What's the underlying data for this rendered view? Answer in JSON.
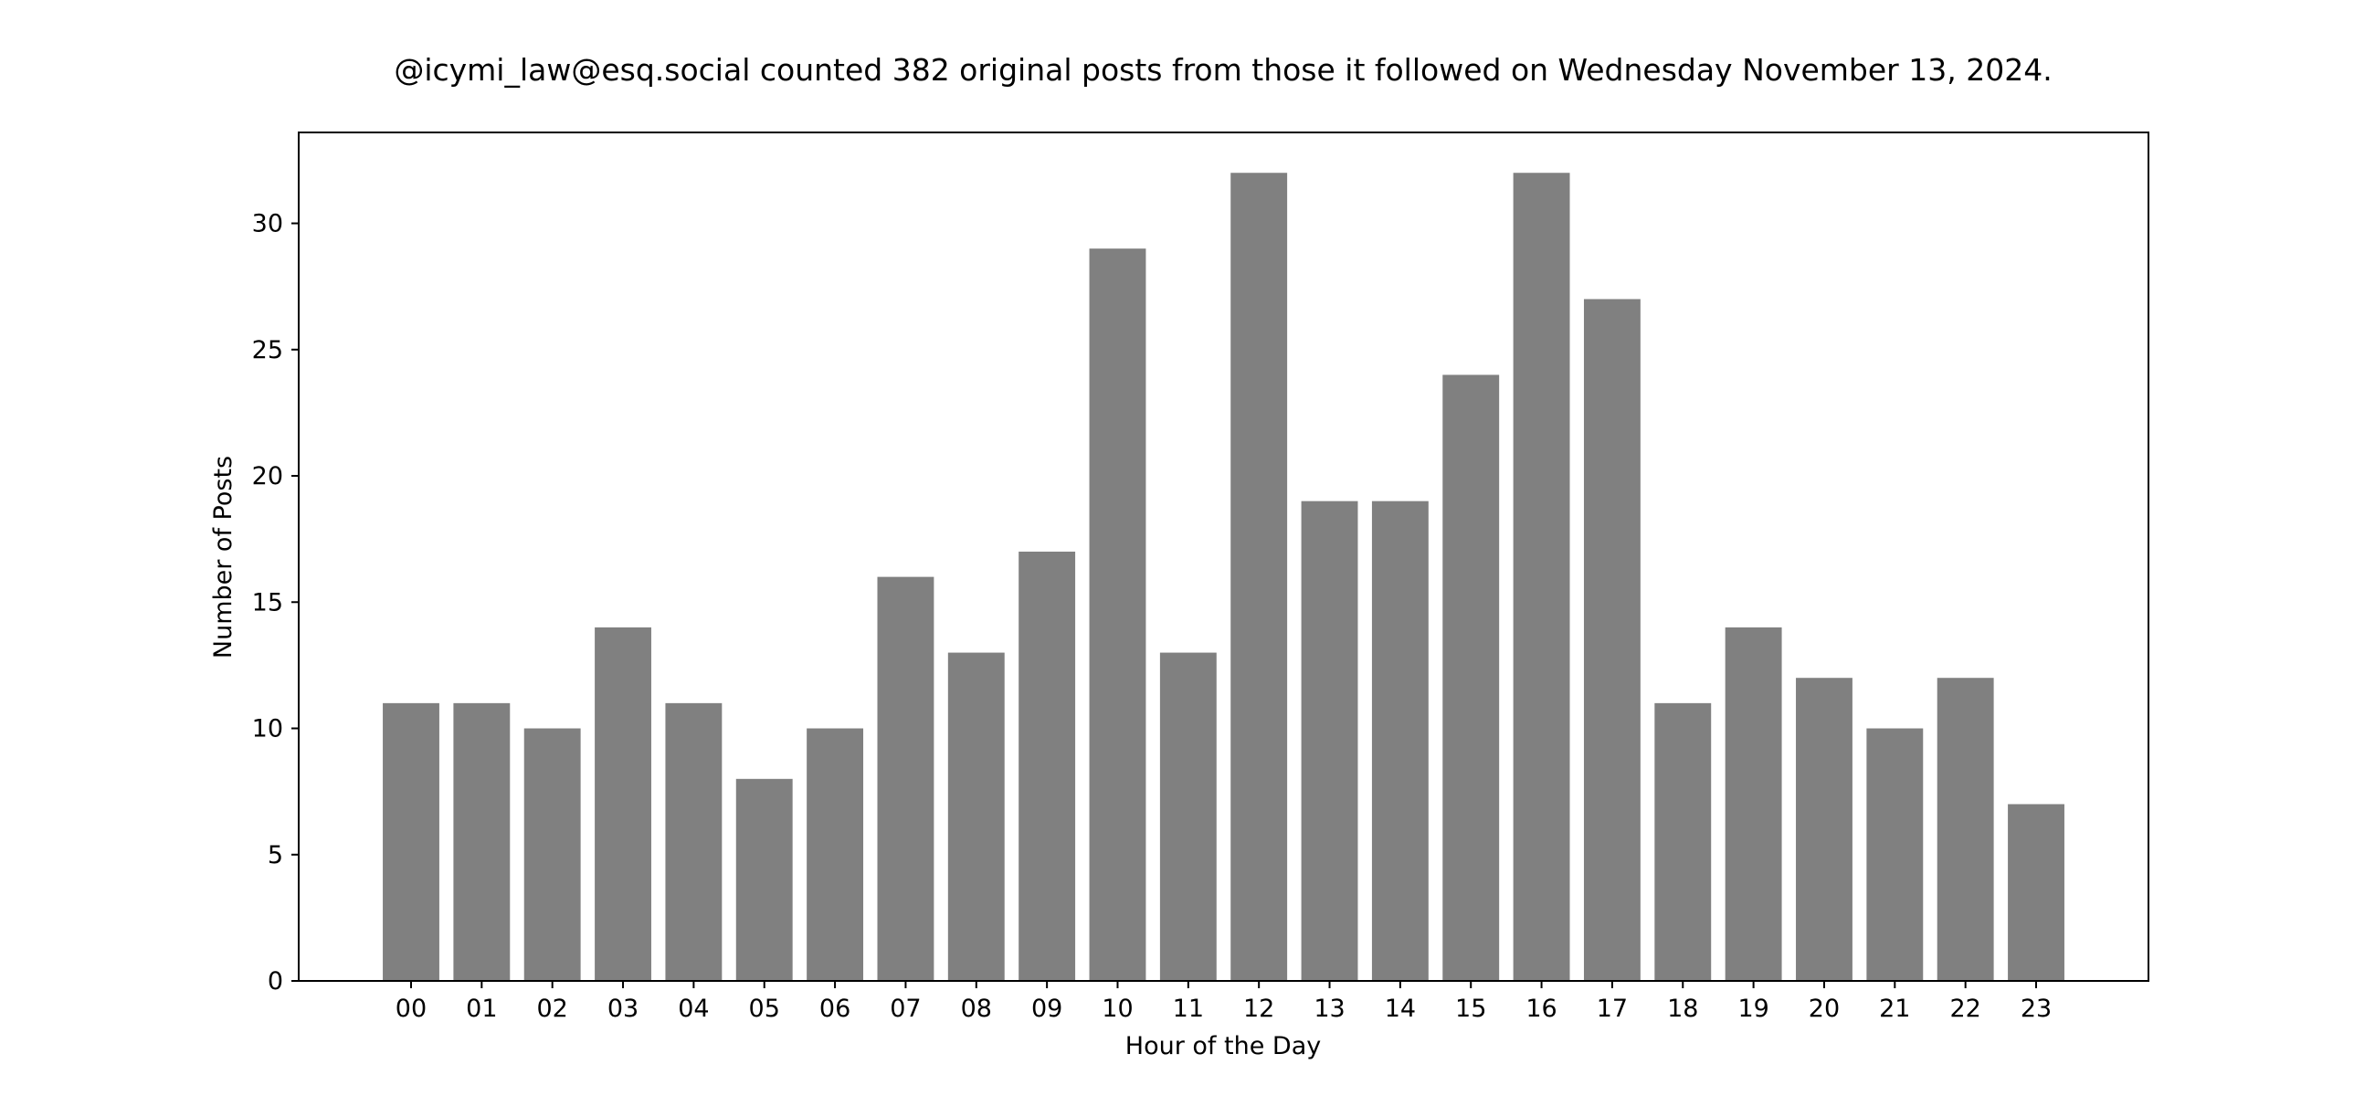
{
  "chart_data": {
    "type": "bar",
    "title": "@icymi_law@esq.social counted 382 original posts from those it followed on Wednesday November 13, 2024.",
    "xlabel": "Hour of the Day",
    "ylabel": "Number of Posts",
    "categories": [
      "00",
      "01",
      "02",
      "03",
      "04",
      "05",
      "06",
      "07",
      "08",
      "09",
      "10",
      "11",
      "12",
      "13",
      "14",
      "15",
      "16",
      "17",
      "18",
      "19",
      "20",
      "21",
      "22",
      "23"
    ],
    "values": [
      11,
      11,
      10,
      14,
      11,
      8,
      10,
      16,
      13,
      17,
      29,
      13,
      32,
      19,
      19,
      24,
      32,
      27,
      11,
      14,
      12,
      10,
      12,
      7
    ],
    "ylim": [
      0,
      33.6
    ],
    "yticks": [
      0,
      5,
      10,
      15,
      20,
      25,
      30
    ],
    "grid": false,
    "legend": "none",
    "bar_color": "#808080",
    "axis_color": "#000000"
  }
}
